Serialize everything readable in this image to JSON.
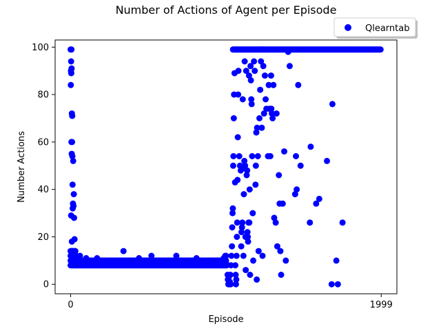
{
  "chart_data": {
    "type": "scatter",
    "title": "Number of Actions of Agent per Episode",
    "xlabel": "Episode",
    "ylabel": "Number Actions",
    "xlim": [
      -100,
      2100
    ],
    "ylim": [
      -4,
      103
    ],
    "xticks": [
      0,
      1999
    ],
    "yticks": [
      0,
      20,
      40,
      60,
      80,
      100
    ],
    "grid": false,
    "legend": "upper-right-outside",
    "colors": {
      "series": "#0000ff",
      "axis": "#000000",
      "background": "#ffffff"
    },
    "series": [
      {
        "name": "Qlearntab",
        "bands": [
          {
            "x0": 0,
            "x1": 30,
            "y": [
              8,
              10,
              12,
              14
            ]
          },
          {
            "x0": 30,
            "x1": 1000,
            "y": [
              8,
              9,
              10
            ]
          },
          {
            "x0": 1045,
            "x1": 1999,
            "y": [
              99
            ]
          }
        ],
        "points": [
          [
            0,
            99
          ],
          [
            5,
            99
          ],
          [
            3,
            94
          ],
          [
            6,
            91
          ],
          [
            2,
            90
          ],
          [
            4,
            89
          ],
          [
            1,
            84
          ],
          [
            8,
            72
          ],
          [
            10,
            71
          ],
          [
            5,
            60
          ],
          [
            9,
            60
          ],
          [
            7,
            55
          ],
          [
            11,
            54
          ],
          [
            16,
            52
          ],
          [
            12,
            42
          ],
          [
            20,
            38
          ],
          [
            15,
            34
          ],
          [
            18,
            33
          ],
          [
            13,
            32
          ],
          [
            3,
            29
          ],
          [
            22,
            28
          ],
          [
            8,
            18
          ],
          [
            25,
            19
          ],
          [
            14,
            14
          ],
          [
            27,
            13
          ],
          [
            30,
            12
          ],
          [
            60,
            12
          ],
          [
            100,
            11
          ],
          [
            170,
            11
          ],
          [
            340,
            14
          ],
          [
            440,
            11
          ],
          [
            520,
            12
          ],
          [
            680,
            12
          ],
          [
            810,
            11
          ],
          [
            900,
            10
          ],
          [
            970,
            10
          ],
          [
            985,
            11
          ],
          [
            995,
            12
          ],
          [
            1000,
            12
          ],
          [
            1005,
            8
          ],
          [
            1010,
            4
          ],
          [
            1012,
            2
          ],
          [
            1015,
            0
          ],
          [
            1018,
            3
          ],
          [
            1022,
            0
          ],
          [
            1025,
            1
          ],
          [
            1028,
            4
          ],
          [
            1030,
            0
          ],
          [
            1032,
            8
          ],
          [
            1035,
            12
          ],
          [
            1038,
            16
          ],
          [
            1040,
            24
          ],
          [
            1042,
            30
          ],
          [
            1044,
            32
          ],
          [
            1046,
            50
          ],
          [
            1048,
            54
          ],
          [
            1050,
            70
          ],
          [
            1052,
            80
          ],
          [
            1055,
            89
          ],
          [
            1058,
            43
          ],
          [
            1060,
            8
          ],
          [
            1062,
            4
          ],
          [
            1064,
            0
          ],
          [
            1066,
            2
          ],
          [
            1068,
            12
          ],
          [
            1070,
            20
          ],
          [
            1072,
            26
          ],
          [
            1074,
            44
          ],
          [
            1076,
            62
          ],
          [
            1078,
            80
          ],
          [
            1080,
            90
          ],
          [
            1085,
            54
          ],
          [
            1090,
            50
          ],
          [
            1095,
            48
          ],
          [
            1098,
            16
          ],
          [
            1100,
            22
          ],
          [
            1103,
            24
          ],
          [
            1105,
            26
          ],
          [
            1108,
            78
          ],
          [
            1110,
            49
          ],
          [
            1112,
            12
          ],
          [
            1115,
            38
          ],
          [
            1118,
            52
          ],
          [
            1120,
            94
          ],
          [
            1123,
            50
          ],
          [
            1125,
            20
          ],
          [
            1127,
            6
          ],
          [
            1130,
            90
          ],
          [
            1133,
            46
          ],
          [
            1136,
            48
          ],
          [
            1138,
            22
          ],
          [
            1140,
            20
          ],
          [
            1142,
            18
          ],
          [
            1145,
            26
          ],
          [
            1148,
            88
          ],
          [
            1150,
            26
          ],
          [
            1152,
            40
          ],
          [
            1155,
            4
          ],
          [
            1158,
            92
          ],
          [
            1160,
            86
          ],
          [
            1163,
            78
          ],
          [
            1165,
            76
          ],
          [
            1168,
            54
          ],
          [
            1172,
            30
          ],
          [
            1175,
            10
          ],
          [
            1180,
            94
          ],
          [
            1185,
            90
          ],
          [
            1190,
            42
          ],
          [
            1192,
            50
          ],
          [
            1195,
            64
          ],
          [
            1198,
            2
          ],
          [
            1200,
            66
          ],
          [
            1205,
            54
          ],
          [
            1210,
            14
          ],
          [
            1215,
            70
          ],
          [
            1220,
            82
          ],
          [
            1225,
            94
          ],
          [
            1230,
            66
          ],
          [
            1235,
            12
          ],
          [
            1240,
            92
          ],
          [
            1245,
            72
          ],
          [
            1250,
            88
          ],
          [
            1255,
            78
          ],
          [
            1260,
            74
          ],
          [
            1270,
            54
          ],
          [
            1275,
            84
          ],
          [
            1280,
            74
          ],
          [
            1285,
            54
          ],
          [
            1290,
            88
          ],
          [
            1292,
            74
          ],
          [
            1295,
            72
          ],
          [
            1300,
            70
          ],
          [
            1305,
            84
          ],
          [
            1310,
            28
          ],
          [
            1320,
            26
          ],
          [
            1325,
            72
          ],
          [
            1330,
            16
          ],
          [
            1340,
            46
          ],
          [
            1345,
            34
          ],
          [
            1350,
            14
          ],
          [
            1355,
            4
          ],
          [
            1365,
            34
          ],
          [
            1375,
            56
          ],
          [
            1385,
            10
          ],
          [
            1400,
            98
          ],
          [
            1410,
            92
          ],
          [
            1445,
            38
          ],
          [
            1450,
            54
          ],
          [
            1455,
            40
          ],
          [
            1465,
            84
          ],
          [
            1480,
            50
          ],
          [
            1540,
            26
          ],
          [
            1545,
            58
          ],
          [
            1580,
            34
          ],
          [
            1600,
            36
          ],
          [
            1650,
            52
          ],
          [
            1680,
            0
          ],
          [
            1685,
            76
          ],
          [
            1710,
            10
          ],
          [
            1720,
            0
          ],
          [
            1750,
            26
          ]
        ]
      }
    ]
  }
}
